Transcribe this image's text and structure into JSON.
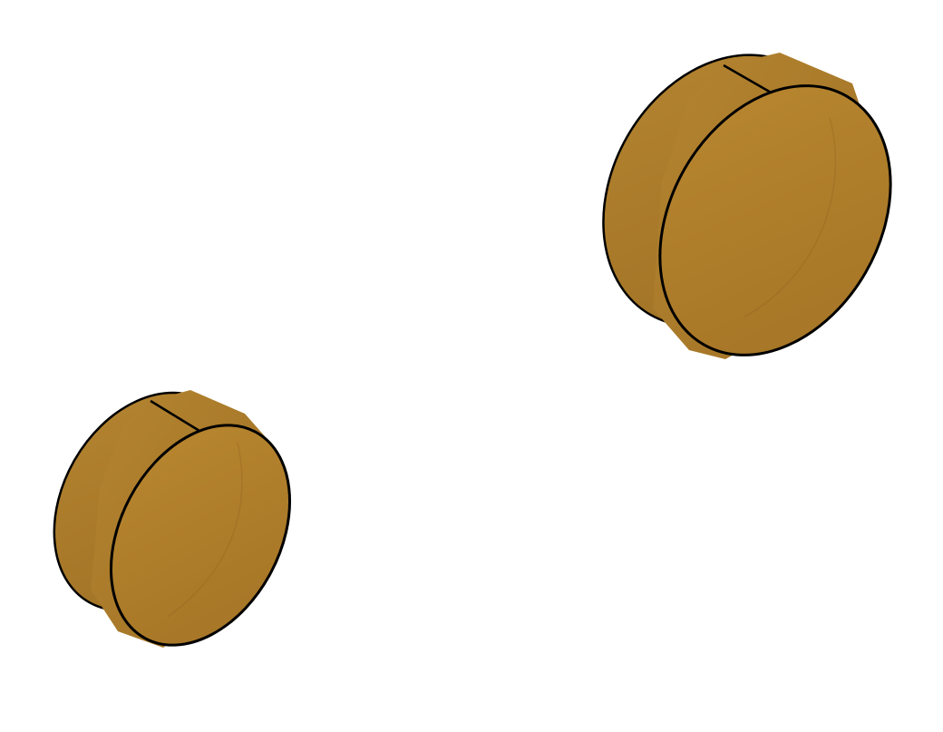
{
  "scene": {
    "background": "#ffffff",
    "disc_color": "#b07f2e",
    "disc_side_color": "#a57526",
    "outline_color": "#000000",
    "objects": [
      {
        "name": "small-disc"
      },
      {
        "name": "large-disc"
      }
    ]
  }
}
